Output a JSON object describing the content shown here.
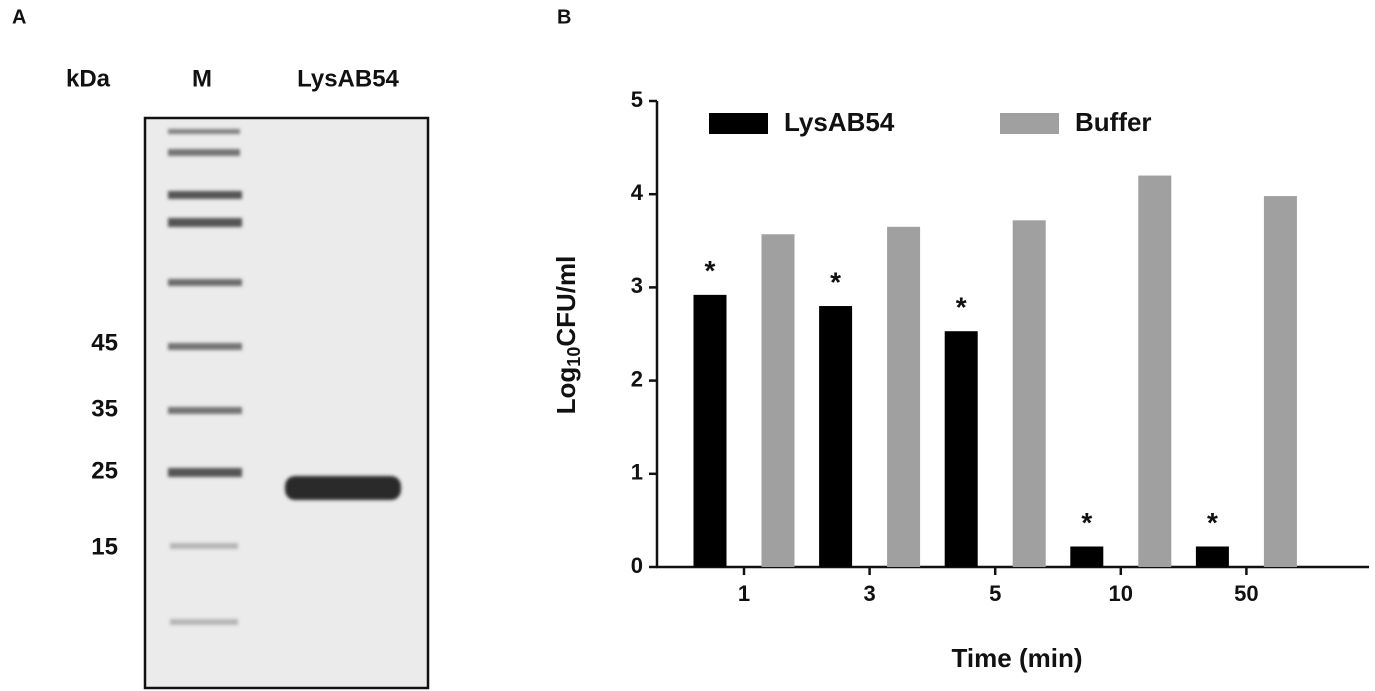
{
  "panel_a": {
    "label": "A",
    "headers": [
      "kDa",
      "M",
      "LysAB54"
    ],
    "markers": [
      45,
      35,
      25,
      15
    ]
  },
  "chart_data": {
    "type": "bar",
    "panel_label": "B",
    "xlabel": "Time (min)",
    "ylabel": [
      "Log",
      "10",
      "CFU/ml"
    ],
    "categories": [
      "1",
      "3",
      "5",
      "10",
      "50"
    ],
    "series": [
      {
        "name": "LysAB54",
        "color": "#000000",
        "values": [
          2.92,
          2.8,
          2.53,
          0.22,
          0.22
        ],
        "annotations": [
          "*",
          "*",
          "*",
          "*",
          "*"
        ]
      },
      {
        "name": "Buffer",
        "color": "#a0a0a0",
        "values": [
          3.57,
          3.65,
          3.72,
          4.2,
          3.98
        ]
      }
    ],
    "ylim": [
      0,
      5
    ],
    "yticks": [
      0,
      1,
      2,
      3,
      4,
      5
    ],
    "legend": "top"
  }
}
